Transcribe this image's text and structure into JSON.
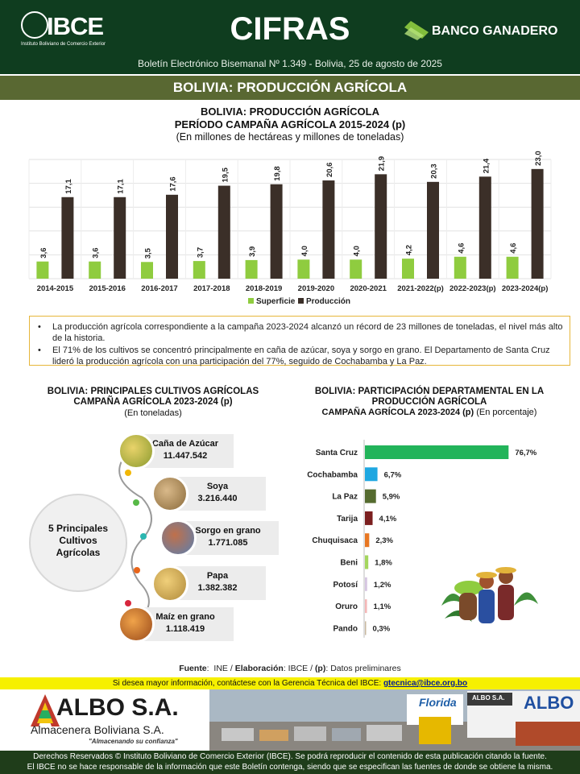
{
  "header": {
    "logo_text": "IBCE",
    "logo_subtitle": "Instituto Boliviano de Comercio Exterior",
    "title": "CIFRAS",
    "bank_name": "BANCO GANADERO",
    "subtitle": "Boletín Electrónico Bisemanal Nº 1.349 - Bolivia, 25 de agosto de 2025"
  },
  "section_title": "BOLIVIA: PRODUCCIÓN AGRÍCOLA",
  "colors": {
    "header_bg": "#0f3d1f",
    "section_band": "#596832",
    "superficie": "#8fcc3f",
    "produccion": "#3b2f28",
    "note_border": "#e6b63a",
    "info_bar": "#f6f000"
  },
  "chart_data": [
    {
      "type": "bar",
      "title": "BOLIVIA: PRODUCCIÓN AGRÍCOLA",
      "subtitle": "PERÍODO CAMPAÑA AGRÍCOLA 2015-2024 (p)",
      "unit_label": "(En millones de hectáreas y millones de toneladas)",
      "categories": [
        "2014-2015",
        "2015-2016",
        "2016-2017",
        "2017-2018",
        "2018-2019",
        "2019-2020",
        "2020-2021",
        "2021-2022(p)",
        "2022-2023(p)",
        "2023-2024(p)"
      ],
      "series": [
        {
          "name": "Superficie",
          "values": [
            3.6,
            3.6,
            3.5,
            3.7,
            3.9,
            4.0,
            4.0,
            4.2,
            4.6,
            4.6
          ],
          "labels": [
            "3,6",
            "3,6",
            "3,5",
            "3,7",
            "3,9",
            "4,0",
            "4,0",
            "4,2",
            "4,6",
            "4,6"
          ],
          "color": "#8fcc3f"
        },
        {
          "name": "Producción",
          "values": [
            17.1,
            17.1,
            17.6,
            19.5,
            19.8,
            20.6,
            21.9,
            20.3,
            21.4,
            23.0
          ],
          "labels": [
            "17,1",
            "17,1",
            "17,6",
            "19,5",
            "19,8",
            "20,6",
            "21,9",
            "20,3",
            "21,4",
            "23,0"
          ],
          "color": "#3b2f28"
        }
      ],
      "ylim": [
        0,
        25
      ],
      "grid": true,
      "legend": "bottom"
    },
    {
      "type": "bar",
      "orientation": "horizontal",
      "title": "BOLIVIA: PARTICIPACIÓN DEPARTAMENTAL EN LA PRODUCCIÓN AGRÍCOLA",
      "subtitle": "CAMPAÑA AGRÍCOLA 2023-2024 (p)",
      "unit_label": "(En porcentaje)",
      "categories": [
        "Santa Cruz",
        "Cochabamba",
        "La Paz",
        "Tarija",
        "Chuquisaca",
        "Beni",
        "Potosí",
        "Oruro",
        "Pando"
      ],
      "values": [
        76.7,
        6.7,
        5.9,
        4.1,
        2.3,
        1.8,
        1.2,
        1.1,
        0.3
      ],
      "labels": [
        "76,7%",
        "6,7%",
        "5,9%",
        "4,1%",
        "2,3%",
        "1,8%",
        "1,2%",
        "1,1%",
        "0,3%"
      ],
      "colors": [
        "#22b45a",
        "#1ea7e1",
        "#556b2f",
        "#7b1f1f",
        "#e87722",
        "#a4d65e",
        "#d6c6e1",
        "#f4b7b7",
        "#c9b9a0"
      ],
      "xlim": [
        0,
        80
      ]
    }
  ],
  "notes": [
    "La producción agrícola correspondiente a la campaña 2023-2024 alcanzó un récord de 23 millones de toneladas, el nivel más alto de la historia.",
    "El 71% de los cultivos se concentró principalmente en caña de azúcar, soya y sorgo en grano. El Departamento de Santa Cruz lideró la producción agrícola con una participación del 77%, seguido de Cochabamba y La Paz."
  ],
  "crops_block": {
    "title_line1": "BOLIVIA: PRINCIPALES CULTIVOS AGRÍCOLAS",
    "title_line2": "CAMPAÑA AGRÍCOLA 2023-2024 (p)",
    "unit": "(En toneladas)",
    "center_label_1": "5 Principales",
    "center_label_2": "Cultivos",
    "center_label_3": "Agrícolas",
    "items": [
      {
        "name": "Caña de Azúcar",
        "value": "11.447.542",
        "icon": "sugarcane-icon",
        "dot_color": "#f2b705"
      },
      {
        "name": "Soya",
        "value": "3.216.440",
        "icon": "soybean-icon",
        "dot_color": "#57b947"
      },
      {
        "name": "Sorgo en grano",
        "value": "1.771.085",
        "icon": "sorghum-icon",
        "dot_color": "#2bb6b0"
      },
      {
        "name": "Papa",
        "value": "1.382.382",
        "icon": "potato-icon",
        "dot_color": "#e8651a"
      },
      {
        "name": "Maíz en grano",
        "value": "1.118.419",
        "icon": "corn-icon",
        "dot_color": "#d7263d"
      }
    ]
  },
  "dept_block": {
    "title_line1": "BOLIVIA: PARTICIPACIÓN DEPARTAMENTAL EN LA",
    "title_line2": "PRODUCCIÓN AGRÍCOLA",
    "title_line3": "CAMPAÑA AGRÍCOLA 2023-2024 (p)",
    "unit": "(En porcentaje)"
  },
  "footer": {
    "fuente_label": "Fuente",
    "fuente_value": "INE",
    "elaboracion_label": "Elaboración",
    "elaboracion_value": "IBCE",
    "p_label": "(p)",
    "p_value": "Datos preliminares",
    "info_text": "Si desea mayor información, contáctese con la Gerencia Técnica del IBCE:",
    "info_email": "gtecnica@ibce.org.bo",
    "ad_brand": "ALBO S.A.",
    "ad_name": "Almacenera Boliviana S.A.",
    "ad_slogan": "\"Almacenando su confianza\"",
    "ad_sign_1": "Florida",
    "ad_sign_2": "ALBO",
    "ad_sign_3": "ALBO S.A.",
    "legal_line1": "Derechos Reservados © Instituto Boliviano de Comercio Exterior (IBCE). Se podrá reproducir el contenido de esta publicación citando la fuente.",
    "legal_line2": "El IBCE no se hace responsable de la información que este Boletín contenga, siendo que se especifican las fuentes de donde se obtiene la misma."
  }
}
